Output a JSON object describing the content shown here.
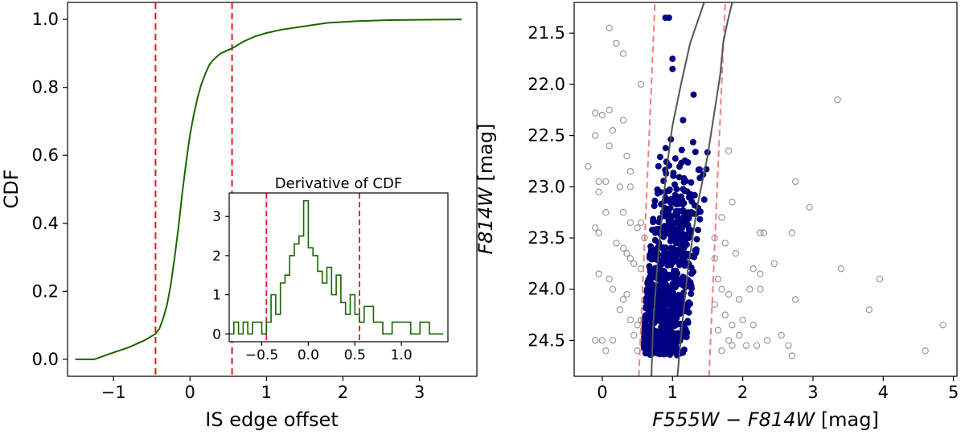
{
  "colors": {
    "cdf_line": "#1a6600",
    "guide_line": "#e31a1c",
    "member_point": "#000080",
    "nonmember_point": "#999999",
    "isochrone": "#555555",
    "color_cut": "#f08080"
  },
  "chart_data": [
    {
      "id": "left-cdf",
      "type": "line",
      "title": "",
      "xlabel": "IS edge offset",
      "ylabel": "CDF",
      "xlim": [
        -1.6,
        3.75
      ],
      "ylim": [
        -0.05,
        1.05
      ],
      "xticks": [
        -1,
        0,
        1,
        2,
        3
      ],
      "xtick_labels": [
        "−1",
        "0",
        "1",
        "2",
        "3"
      ],
      "yticks": [
        0.0,
        0.2,
        0.4,
        0.6,
        0.8,
        1.0
      ],
      "ytick_labels": [
        "0.0",
        "0.2",
        "0.4",
        "0.6",
        "0.8",
        "1.0"
      ],
      "series": [
        {
          "name": "CDF",
          "x": [
            -1.5,
            -1.25,
            -1.0,
            -0.8,
            -0.6,
            -0.45,
            -0.4,
            -0.35,
            -0.3,
            -0.25,
            -0.2,
            -0.15,
            -0.1,
            -0.05,
            0.0,
            0.05,
            0.1,
            0.15,
            0.2,
            0.25,
            0.3,
            0.4,
            0.5,
            0.55,
            0.7,
            0.85,
            1.0,
            1.2,
            1.5,
            1.8,
            2.2,
            2.6,
            3.0,
            3.55
          ],
          "y": [
            0.0,
            0.0,
            0.02,
            0.035,
            0.055,
            0.075,
            0.09,
            0.12,
            0.16,
            0.22,
            0.3,
            0.39,
            0.49,
            0.58,
            0.66,
            0.72,
            0.77,
            0.81,
            0.84,
            0.865,
            0.88,
            0.9,
            0.91,
            0.915,
            0.935,
            0.95,
            0.96,
            0.97,
            0.98,
            0.99,
            0.995,
            0.998,
            0.999,
            1.0
          ]
        }
      ],
      "vertical_lines": [
        -0.45,
        0.55
      ]
    },
    {
      "id": "left-inset",
      "type": "line",
      "title": "Derivative of CDF",
      "xlim": [
        -0.85,
        1.5
      ],
      "ylim": [
        -0.2,
        3.6
      ],
      "xticks": [
        -0.5,
        0.0,
        0.5,
        1.0
      ],
      "xtick_labels": [
        "−0.5",
        "0.0",
        "0.5",
        "1.0"
      ],
      "yticks": [
        0,
        1,
        2,
        3
      ],
      "ytick_labels": [
        "0",
        "1",
        "2",
        "3"
      ],
      "series": [
        {
          "name": "Derivative of CDF",
          "x": [
            -0.85,
            -0.8,
            -0.75,
            -0.7,
            -0.65,
            -0.6,
            -0.55,
            -0.5,
            -0.45,
            -0.4,
            -0.35,
            -0.3,
            -0.25,
            -0.2,
            -0.15,
            -0.1,
            -0.05,
            0.0,
            0.05,
            0.1,
            0.15,
            0.2,
            0.25,
            0.3,
            0.35,
            0.4,
            0.45,
            0.5,
            0.55,
            0.6,
            0.7,
            0.8,
            0.9,
            1.0,
            1.1,
            1.2,
            1.3,
            1.45
          ],
          "y": [
            0.0,
            0.3,
            0.0,
            0.3,
            0.0,
            0.3,
            0.3,
            0.0,
            0.3,
            1.0,
            0.5,
            1.3,
            1.5,
            2.0,
            2.3,
            2.5,
            3.4,
            2.2,
            2.0,
            1.6,
            1.3,
            1.7,
            1.0,
            1.5,
            0.8,
            0.5,
            1.0,
            0.5,
            0.3,
            0.7,
            0.3,
            0.0,
            0.3,
            0.3,
            0.0,
            0.3,
            0.0,
            0.0
          ]
        }
      ],
      "vertical_lines": [
        -0.45,
        0.55
      ]
    },
    {
      "id": "right-cmd",
      "type": "scatter",
      "xlabel": "F555W − F814W [mag]",
      "xlabel_parts": [
        "F555W",
        " − ",
        "F814W",
        " [mag]"
      ],
      "ylabel": "F814W [mag]",
      "ylabel_parts": [
        "F814W",
        " [mag]"
      ],
      "xlim": [
        -0.4,
        5.05
      ],
      "ylim": [
        24.85,
        21.2
      ],
      "xticks": [
        0,
        1,
        2,
        3,
        4,
        5
      ],
      "xtick_labels": [
        "0",
        "1",
        "2",
        "3",
        "4",
        "5"
      ],
      "yticks": [
        21.5,
        22.0,
        22.5,
        23.0,
        23.5,
        24.0,
        24.5
      ],
      "ytick_labels": [
        "21.5",
        "22.0",
        "22.5",
        "23.0",
        "23.5",
        "24.0",
        "24.5"
      ],
      "members_description": "filled dark-blue points, ~750 stars between the two solid lines",
      "nonmembers": [
        [
          0.1,
          21.45
        ],
        [
          0.3,
          21.7
        ],
        [
          0.2,
          21.6
        ],
        [
          0.55,
          22.0
        ],
        [
          0.1,
          22.25
        ],
        [
          0.0,
          22.3
        ],
        [
          -0.1,
          22.28
        ],
        [
          0.3,
          22.35
        ],
        [
          -0.1,
          22.5
        ],
        [
          0.15,
          22.45
        ],
        [
          0.35,
          22.7
        ],
        [
          0.1,
          22.6
        ],
        [
          -0.2,
          22.8
        ],
        [
          -0.05,
          22.95
        ],
        [
          0.05,
          22.95
        ],
        [
          0.25,
          23.0
        ],
        [
          -0.05,
          23.05
        ],
        [
          0.4,
          22.85
        ],
        [
          0.4,
          23.0
        ],
        [
          0.3,
          23.25
        ],
        [
          0.05,
          23.25
        ],
        [
          0.4,
          23.35
        ],
        [
          0.5,
          23.4
        ],
        [
          0.6,
          23.5
        ],
        [
          0.55,
          23.35
        ],
        [
          -0.05,
          23.45
        ],
        [
          -0.1,
          23.4
        ],
        [
          0.2,
          23.55
        ],
        [
          0.3,
          23.6
        ],
        [
          0.35,
          23.65
        ],
        [
          0.45,
          23.75
        ],
        [
          0.55,
          23.8
        ],
        [
          0.4,
          23.7
        ],
        [
          -0.05,
          23.85
        ],
        [
          0.1,
          23.9
        ],
        [
          0.15,
          24.0
        ],
        [
          0.3,
          24.1
        ],
        [
          0.35,
          24.05
        ],
        [
          0.25,
          24.2
        ],
        [
          0.4,
          24.3
        ],
        [
          0.5,
          24.35
        ],
        [
          0.45,
          24.45
        ],
        [
          0.0,
          24.5
        ],
        [
          -0.1,
          24.5
        ],
        [
          0.05,
          24.6
        ],
        [
          0.15,
          24.5
        ],
        [
          0.5,
          24.6
        ],
        [
          0.55,
          24.3
        ],
        [
          1.8,
          22.65
        ],
        [
          1.85,
          23.15
        ],
        [
          1.7,
          23.3
        ],
        [
          1.6,
          23.5
        ],
        [
          1.75,
          23.55
        ],
        [
          2.25,
          23.45
        ],
        [
          2.3,
          23.45
        ],
        [
          1.6,
          23.7
        ],
        [
          1.9,
          23.65
        ],
        [
          2.15,
          23.8
        ],
        [
          2.25,
          23.85
        ],
        [
          2.45,
          23.75
        ],
        [
          1.65,
          23.9
        ],
        [
          1.7,
          24.0
        ],
        [
          1.8,
          24.05
        ],
        [
          1.95,
          24.1
        ],
        [
          2.1,
          24.0
        ],
        [
          2.25,
          24.0
        ],
        [
          1.6,
          24.15
        ],
        [
          1.75,
          24.25
        ],
        [
          1.85,
          24.35
        ],
        [
          2.0,
          24.3
        ],
        [
          2.15,
          24.35
        ],
        [
          1.65,
          24.4
        ],
        [
          1.8,
          24.5
        ],
        [
          1.95,
          24.45
        ],
        [
          2.05,
          24.55
        ],
        [
          2.2,
          24.55
        ],
        [
          2.35,
          24.5
        ],
        [
          1.7,
          24.6
        ],
        [
          1.85,
          24.55
        ],
        [
          2.65,
          24.55
        ],
        [
          2.7,
          24.65
        ],
        [
          2.55,
          24.45
        ],
        [
          2.75,
          22.95
        ],
        [
          2.95,
          23.2
        ],
        [
          2.7,
          23.45
        ],
        [
          3.35,
          22.15
        ],
        [
          3.4,
          23.8
        ],
        [
          2.75,
          24.1
        ],
        [
          3.8,
          24.2
        ],
        [
          3.95,
          23.9
        ],
        [
          4.6,
          24.6
        ],
        [
          4.85,
          24.35
        ]
      ],
      "isochrones": [
        {
          "name": "blue-edge",
          "x": [
            0.7,
            0.72,
            0.78,
            0.86,
            0.92,
            1.0,
            1.12,
            1.25,
            1.45
          ],
          "y": [
            24.85,
            24.4,
            23.8,
            23.2,
            22.8,
            22.4,
            22.0,
            21.6,
            21.2
          ]
        },
        {
          "name": "red-edge",
          "x": [
            1.07,
            1.13,
            1.22,
            1.35,
            1.5,
            1.68,
            1.72,
            1.78,
            1.85
          ],
          "y": [
            24.85,
            24.4,
            23.8,
            23.2,
            22.7,
            21.9,
            21.6,
            21.4,
            21.2
          ]
        }
      ],
      "color_cuts": [
        {
          "name": "blue-cut",
          "x": [
            0.52,
            0.75
          ],
          "y": [
            24.85,
            21.2
          ]
        },
        {
          "name": "red-cut",
          "x": [
            1.52,
            1.75
          ],
          "y": [
            24.85,
            21.2
          ]
        }
      ]
    }
  ]
}
